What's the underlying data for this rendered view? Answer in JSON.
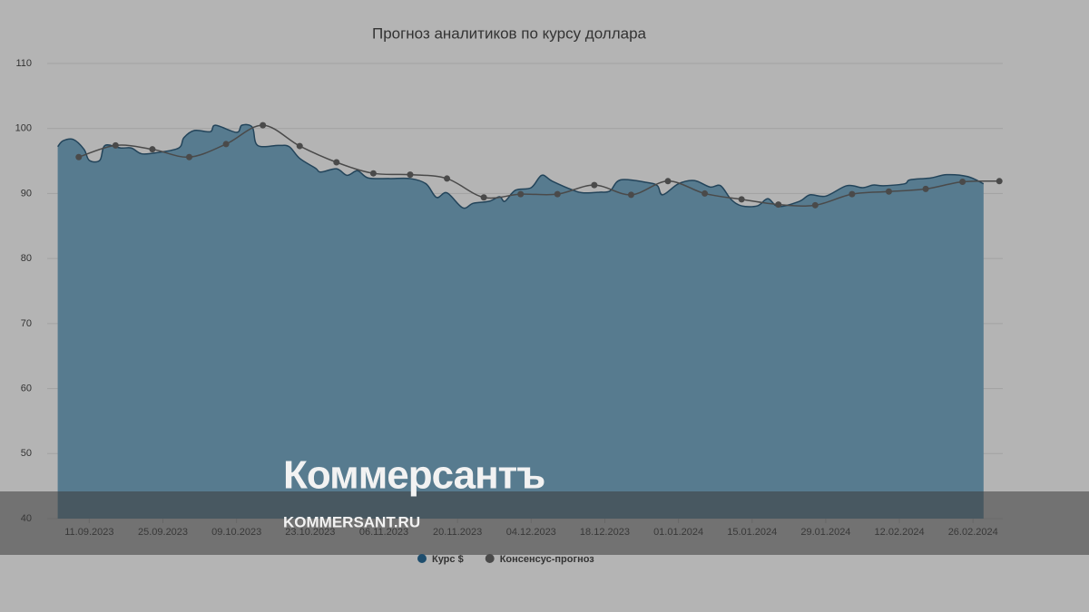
{
  "chart_data": {
    "type": "area",
    "title": "Прогноз аналитиков по курсу доллара",
    "xlim": [
      "03.09.2023",
      "03.03.2024"
    ],
    "xticks": [
      "11.09.2023",
      "25.09.2023",
      "09.10.2023",
      "23.10.2023",
      "06.11.2023",
      "20.11.2023",
      "04.12.2023",
      "18.12.2023",
      "01.01.2024",
      "15.01.2024",
      "29.01.2024",
      "12.02.2024",
      "26.02.2024"
    ],
    "ylim": [
      40,
      110
    ],
    "yticks": [
      40,
      50,
      60,
      70,
      80,
      90,
      100,
      110
    ],
    "grid": true,
    "legend": "bottom",
    "series": [
      {
        "name": "Курс $",
        "type": "area",
        "color": "#577b8f",
        "line_color": "#23445a",
        "legend_color": "#1f4e6e",
        "x": [
          "05.09.2023",
          "06.09.2023",
          "08.09.2023",
          "10.09.2023",
          "11.09.2023",
          "13.09.2023",
          "14.09.2023",
          "17.09.2023",
          "19.09.2023",
          "21.09.2023",
          "24.09.2023",
          "28.09.2023",
          "29.09.2023",
          "01.10.2023",
          "04.10.2023",
          "05.10.2023",
          "09.10.2023",
          "10.10.2023",
          "12.10.2023",
          "13.10.2023",
          "17.10.2023",
          "19.10.2023",
          "21.10.2023",
          "24.10.2023",
          "25.10.2023",
          "28.10.2023",
          "30.10.2023",
          "01.11.2023",
          "03.11.2023",
          "07.11.2023",
          "11.11.2023",
          "14.11.2023",
          "16.11.2023",
          "18.11.2023",
          "21.11.2023",
          "23.11.2023",
          "26.11.2023",
          "28.11.2023",
          "29.11.2023",
          "01.12.2023",
          "04.12.2023",
          "06.12.2023",
          "08.12.2023",
          "12.12.2023",
          "14.12.2023",
          "17.12.2023",
          "19.12.2023",
          "21.12.2023",
          "26.12.2023",
          "28.12.2023",
          "29.12.2023",
          "01.01.2024",
          "04.01.2024",
          "07.01.2024",
          "09.01.2024",
          "11.01.2024",
          "13.01.2024",
          "16.01.2024",
          "18.01.2024",
          "20.01.2024",
          "24.01.2024",
          "26.01.2024",
          "29.01.2024",
          "02.02.2024",
          "05.02.2024",
          "07.02.2024",
          "09.02.2024",
          "13.02.2024",
          "14.02.2024",
          "18.02.2024",
          "21.02.2024",
          "25.02.2024",
          "28.02.2024"
        ],
        "values": [
          97.2,
          98.1,
          98.3,
          96.8,
          95.1,
          95.1,
          97.4,
          97.0,
          97.0,
          96.1,
          96.3,
          97.0,
          98.6,
          99.7,
          99.5,
          100.5,
          99.4,
          100.5,
          100.2,
          97.4,
          97.4,
          97.2,
          95.4,
          93.9,
          93.3,
          93.8,
          92.8,
          93.5,
          92.4,
          92.3,
          92.3,
          91.5,
          89.4,
          90.1,
          87.8,
          88.5,
          88.8,
          89.5,
          88.8,
          90.5,
          90.9,
          92.8,
          91.9,
          90.5,
          90.1,
          90.2,
          90.4,
          92.1,
          91.7,
          91.2,
          89.8,
          91.5,
          92.0,
          91.0,
          91.2,
          89.1,
          88.1,
          88.1,
          89.2,
          88.0,
          88.8,
          89.8,
          89.6,
          91.2,
          90.9,
          91.3,
          91.2,
          91.5,
          92.1,
          92.4,
          92.9,
          92.6,
          91.5
        ]
      },
      {
        "name": "Консенсус-прогноз",
        "type": "line",
        "color": "#4a4a4a",
        "x": [
          "09.09.2023",
          "16.09.2023",
          "23.09.2023",
          "30.09.2023",
          "07.10.2023",
          "14.10.2023",
          "21.10.2023",
          "28.10.2023",
          "04.11.2023",
          "11.11.2023",
          "18.11.2023",
          "25.11.2023",
          "02.12.2023",
          "09.12.2023",
          "16.12.2023",
          "23.12.2023",
          "30.12.2023",
          "06.01.2024",
          "13.01.2024",
          "20.01.2024",
          "27.01.2024",
          "03.02.2024",
          "10.02.2024",
          "17.02.2024",
          "24.02.2024",
          "02.03.2024"
        ],
        "values": [
          95.6,
          97.4,
          96.8,
          95.6,
          97.6,
          100.5,
          97.3,
          94.8,
          93.1,
          92.9,
          92.3,
          89.4,
          89.9,
          89.9,
          91.3,
          89.8,
          91.9,
          90.0,
          89.1,
          88.3,
          88.2,
          89.9,
          90.3,
          90.7,
          91.8,
          91.9
        ]
      }
    ]
  },
  "watermark": {
    "logo": "Коммерсантъ",
    "site": "KOMMERSANT.RU"
  }
}
